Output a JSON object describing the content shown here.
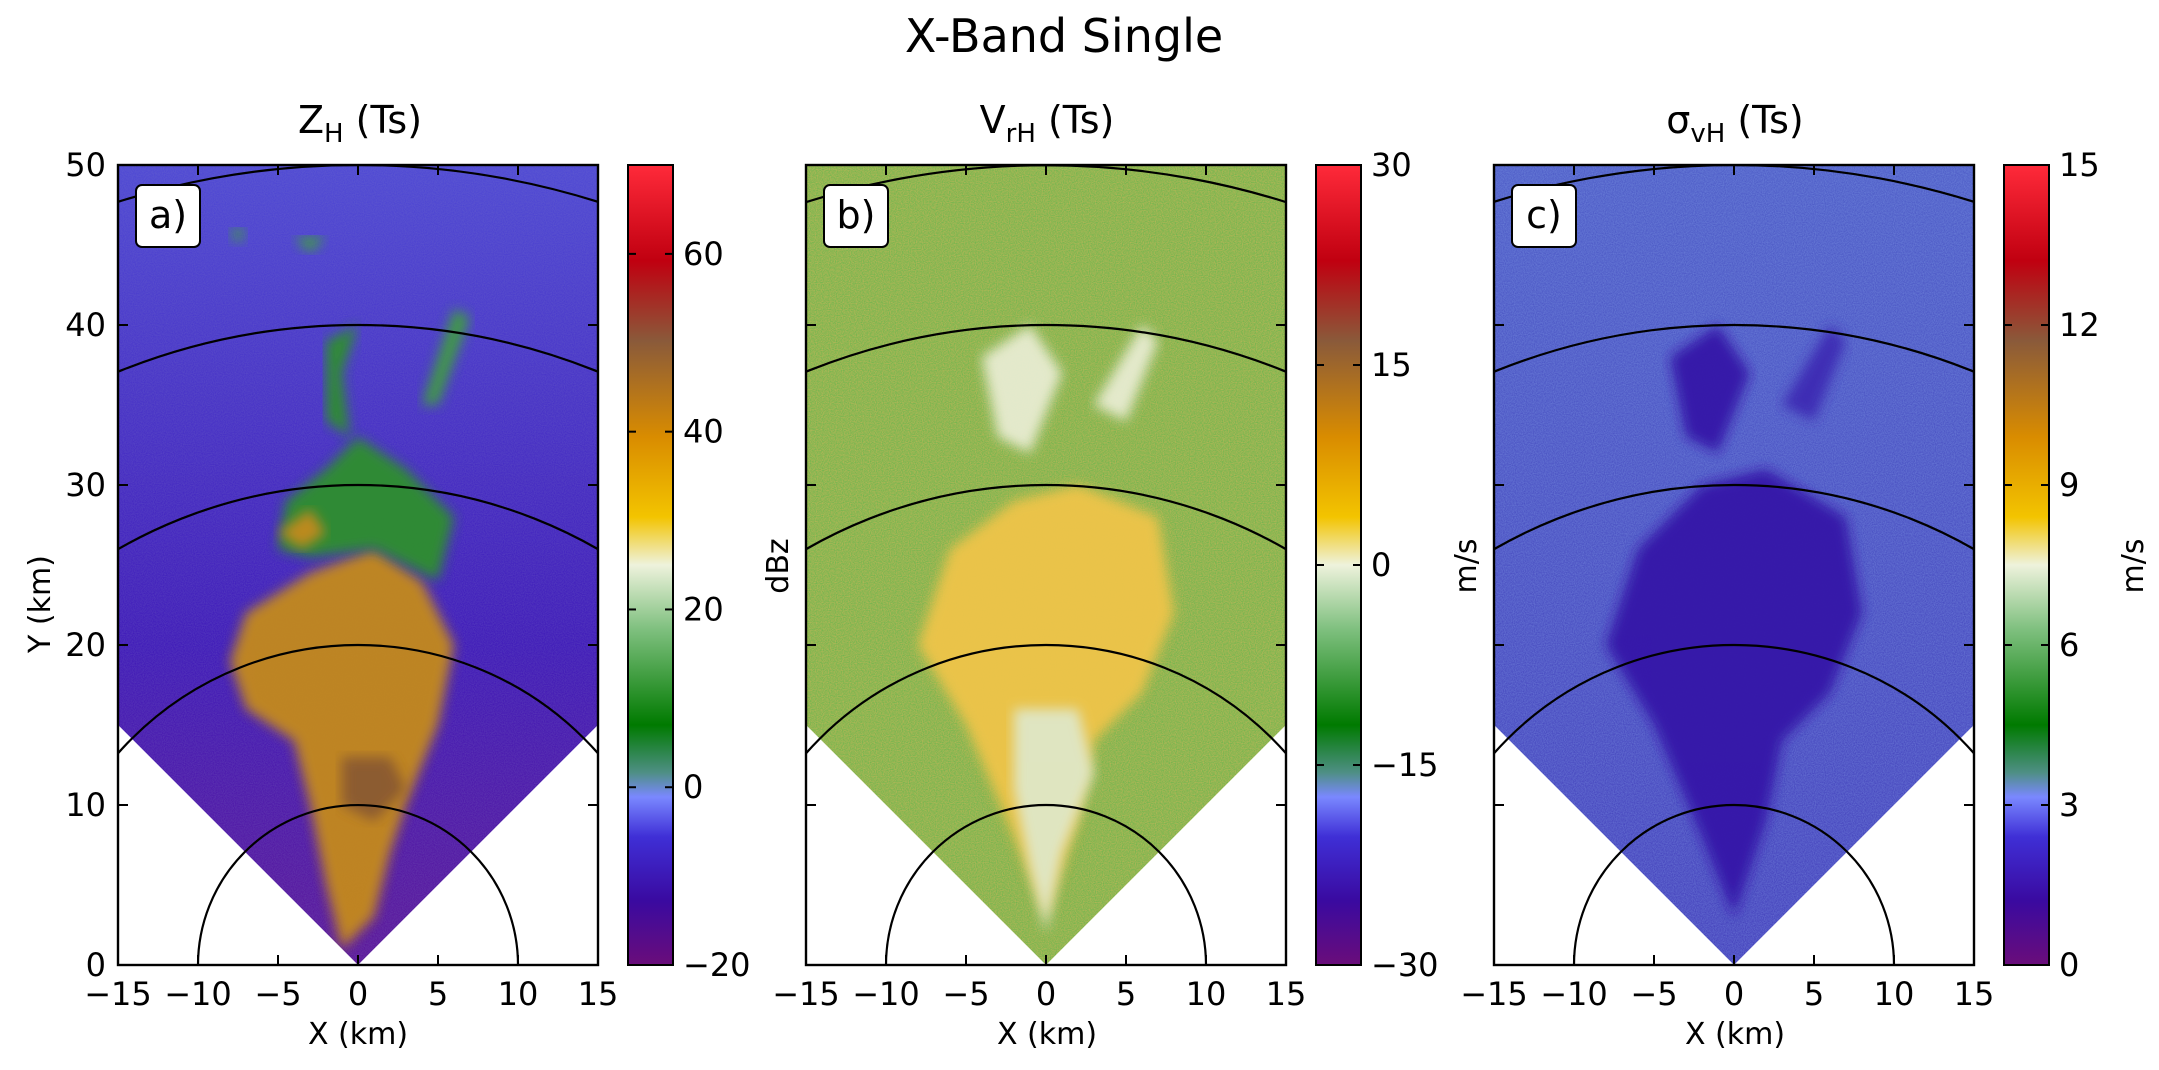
{
  "figure_title": "X-Band Single",
  "colors": {
    "panel_a_rings": "#000000",
    "scale_stops": [
      "#6a0d7a",
      "#3a0aa0",
      "#3f2fd6",
      "#7a88ff",
      "#4f8f86",
      "#007a00",
      "#7fc07f",
      "#eef2dc",
      "#f3c400",
      "#d98c00",
      "#8a5a3a",
      "#c00010",
      "#ff2a3a"
    ]
  },
  "chart_data": [
    {
      "type": "heatmap",
      "panel_label": "a)",
      "title_main": "Z",
      "title_sub": "H",
      "title_suffix": " (Ts)",
      "xlabel": "X (km)",
      "ylabel": "Y (km)",
      "colorbar_label": "dBz",
      "xlim": [
        -15,
        15
      ],
      "ylim": [
        0,
        50
      ],
      "xticks": [
        "−15",
        "−10",
        "−5",
        "0",
        "5",
        "10",
        "15"
      ],
      "yticks": [
        "0",
        "10",
        "20",
        "30",
        "40",
        "50"
      ],
      "clim": [
        -20,
        70
      ],
      "cticks": [
        "−20",
        "0",
        "20",
        "40",
        "60"
      ],
      "cticks_values": [
        -20,
        0,
        20,
        40,
        60
      ],
      "range_rings_km": [
        10,
        20,
        30,
        40,
        50
      ],
      "sector_half_angle_deg": 45,
      "background_level": -10
    },
    {
      "type": "heatmap",
      "panel_label": "b)",
      "title_main": "V",
      "title_sub": "rH",
      "title_suffix": " (Ts)",
      "xlabel": "X (km)",
      "colorbar_label": "m/s",
      "xlim": [
        -15,
        15
      ],
      "ylim": [
        0,
        50
      ],
      "xticks": [
        "−15",
        "−10",
        "−5",
        "0",
        "5",
        "10",
        "15"
      ],
      "clim": [
        -30,
        30
      ],
      "cticks": [
        "−30",
        "−15",
        "0",
        "15",
        "30"
      ],
      "cticks_values": [
        -30,
        -15,
        0,
        15,
        30
      ],
      "range_rings_km": [
        10,
        20,
        30,
        40,
        50
      ],
      "sector_half_angle_deg": 45,
      "background_level": 0
    },
    {
      "type": "heatmap",
      "panel_label": "c)",
      "title_main": "σ",
      "title_sub": "vH",
      "title_suffix": " (Ts)",
      "xlabel": "X (km)",
      "ylabel": "m/s",
      "colorbar_label": "m/s",
      "xlim": [
        -15,
        15
      ],
      "ylim": [
        0,
        50
      ],
      "xticks": [
        "−15",
        "−10",
        "−5",
        "0",
        "5",
        "10",
        "15"
      ],
      "clim": [
        0,
        15
      ],
      "cticks": [
        "0",
        "3",
        "6",
        "9",
        "12",
        "15"
      ],
      "cticks_values": [
        0,
        3,
        6,
        9,
        12,
        15
      ],
      "range_rings_km": [
        10,
        20,
        30,
        40,
        50
      ],
      "sector_half_angle_deg": 45,
      "background_level": 3
    }
  ]
}
